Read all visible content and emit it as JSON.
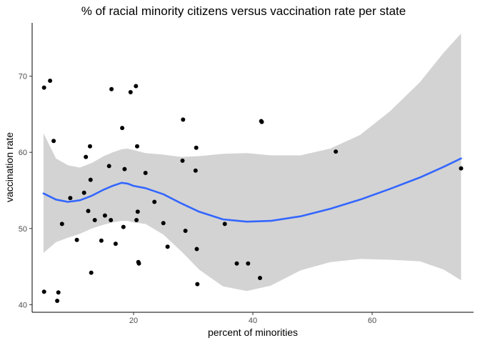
{
  "chart_data": {
    "type": "scatter",
    "title": "% of racial minority citizens versus vaccination rate per state",
    "xlabel": "percent of minorities",
    "ylabel": "vaccination rate",
    "xlim": [
      3,
      77
    ],
    "ylim": [
      39,
      77
    ],
    "x_ticks": [
      20,
      40,
      60
    ],
    "y_ticks": [
      40,
      50,
      60,
      70
    ],
    "grid": false,
    "legend": "none",
    "colors": {
      "points": "#000000",
      "smooth": "#3366ff",
      "ribbon": "#d3d3d3"
    },
    "points": [
      {
        "x": 5.0,
        "y": 68.5
      },
      {
        "x": 6.0,
        "y": 69.4
      },
      {
        "x": 6.6,
        "y": 61.5
      },
      {
        "x": 5.0,
        "y": 41.7
      },
      {
        "x": 7.2,
        "y": 40.5
      },
      {
        "x": 7.4,
        "y": 41.6
      },
      {
        "x": 8.0,
        "y": 50.6
      },
      {
        "x": 9.4,
        "y": 54.0
      },
      {
        "x": 10.5,
        "y": 48.5
      },
      {
        "x": 11.7,
        "y": 54.7
      },
      {
        "x": 12.0,
        "y": 59.4
      },
      {
        "x": 12.4,
        "y": 52.3
      },
      {
        "x": 12.7,
        "y": 60.8
      },
      {
        "x": 12.8,
        "y": 56.4
      },
      {
        "x": 12.9,
        "y": 44.2
      },
      {
        "x": 13.5,
        "y": 51.1
      },
      {
        "x": 14.6,
        "y": 48.4
      },
      {
        "x": 15.2,
        "y": 51.7
      },
      {
        "x": 15.9,
        "y": 58.2
      },
      {
        "x": 16.2,
        "y": 51.1
      },
      {
        "x": 16.3,
        "y": 68.3
      },
      {
        "x": 17.0,
        "y": 48.0
      },
      {
        "x": 18.1,
        "y": 63.2
      },
      {
        "x": 18.3,
        "y": 50.2
      },
      {
        "x": 18.5,
        "y": 57.8
      },
      {
        "x": 19.5,
        "y": 67.9
      },
      {
        "x": 20.4,
        "y": 68.7
      },
      {
        "x": 20.5,
        "y": 51.1
      },
      {
        "x": 20.6,
        "y": 60.8
      },
      {
        "x": 20.7,
        "y": 52.2
      },
      {
        "x": 20.8,
        "y": 45.6
      },
      {
        "x": 20.9,
        "y": 45.4
      },
      {
        "x": 22.0,
        "y": 57.3
      },
      {
        "x": 23.5,
        "y": 53.5
      },
      {
        "x": 25.0,
        "y": 50.7
      },
      {
        "x": 25.7,
        "y": 47.6
      },
      {
        "x": 28.2,
        "y": 58.9
      },
      {
        "x": 28.3,
        "y": 64.3
      },
      {
        "x": 28.7,
        "y": 49.7
      },
      {
        "x": 30.4,
        "y": 57.6
      },
      {
        "x": 30.5,
        "y": 60.6
      },
      {
        "x": 30.6,
        "y": 47.3
      },
      {
        "x": 30.7,
        "y": 42.7
      },
      {
        "x": 35.3,
        "y": 50.6
      },
      {
        "x": 37.3,
        "y": 45.4
      },
      {
        "x": 39.2,
        "y": 45.4
      },
      {
        "x": 41.2,
        "y": 43.5
      },
      {
        "x": 41.4,
        "y": 64.1
      },
      {
        "x": 41.5,
        "y": 64.0
      },
      {
        "x": 53.9,
        "y": 60.1
      },
      {
        "x": 74.9,
        "y": 57.9
      }
    ],
    "smooth": {
      "x": [
        4.9,
        7.0,
        9.0,
        11.0,
        13.0,
        15.0,
        16.5,
        18.0,
        19.0,
        20.0,
        22.0,
        25.0,
        28.0,
        31.0,
        35.0,
        39.0,
        43.0,
        48.0,
        53.0,
        58.0,
        63.0,
        68.0,
        72.0,
        74.9
      ],
      "y": [
        54.6,
        53.8,
        53.5,
        53.7,
        54.3,
        55.1,
        55.6,
        56.0,
        55.9,
        55.6,
        55.3,
        54.5,
        53.3,
        52.2,
        51.2,
        50.9,
        51.0,
        51.6,
        52.6,
        53.8,
        55.2,
        56.7,
        58.1,
        59.2
      ],
      "lower": [
        46.8,
        48.2,
        48.8,
        49.3,
        50.0,
        50.5,
        50.8,
        51.0,
        51.0,
        50.8,
        50.6,
        49.2,
        47.0,
        44.6,
        42.4,
        41.8,
        42.5,
        44.5,
        45.6,
        46.0,
        45.9,
        45.7,
        44.6,
        43.2
      ],
      "upper": [
        62.5,
        59.2,
        58.3,
        58.0,
        58.6,
        59.5,
        60.0,
        60.4,
        60.5,
        60.3,
        59.9,
        59.7,
        59.4,
        59.5,
        59.8,
        59.9,
        59.6,
        59.6,
        60.5,
        62.3,
        65.4,
        69.2,
        73.1,
        75.6
      ]
    }
  }
}
